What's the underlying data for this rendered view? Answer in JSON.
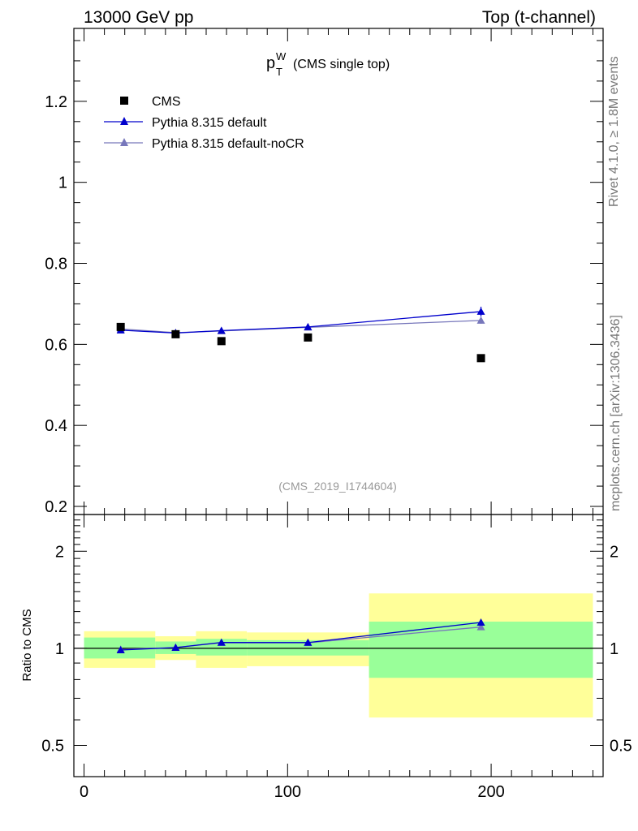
{
  "header": {
    "left": "13000 GeV pp",
    "right": "Top (t-channel)"
  },
  "title": {
    "main": "p",
    "sup": "W",
    "sub": "T",
    "suffix": "(CMS single top)"
  },
  "side_text": {
    "rivet": "Rivet 4.1.0, ≥ 1.8M events",
    "mcplots": "mcplots.cern.ch [arXiv:1306.3436]"
  },
  "analysis_label": "(CMS_2019_I1744604)",
  "colors": {
    "data": "#000000",
    "pythia_default": "#0000cc",
    "pythia_nocr": "#7777bb",
    "band_inner": "#99ff99",
    "band_outer": "#ffff99"
  },
  "chart_data": [
    {
      "type": "scatter",
      "panel": "main",
      "ylim": [
        0.18,
        1.38
      ],
      "xlim": [
        -5,
        255
      ],
      "yticks": [
        0.2,
        0.4,
        0.6,
        0.8,
        1,
        1.2
      ],
      "ytick_labels": [
        "0.2",
        "0.4",
        "0.6",
        "0.8",
        "1",
        "1.2"
      ],
      "legend_position": "top-left",
      "series": [
        {
          "name": "CMS",
          "marker": "square",
          "x": [
            18,
            45,
            67.5,
            110,
            195
          ],
          "y": [
            0.643,
            0.625,
            0.608,
            0.617,
            0.566
          ]
        },
        {
          "name": "Pythia 8.315 default",
          "marker": "triangle",
          "x": [
            18,
            45,
            67.5,
            110,
            195
          ],
          "y": [
            0.635,
            0.628,
            0.634,
            0.643,
            0.681
          ],
          "yerr": [
            0.004,
            0.004,
            0.004,
            0.005,
            0.012
          ]
        },
        {
          "name": "Pythia 8.315 default-noCR",
          "marker": "triangle",
          "x": [
            18,
            45,
            67.5,
            110,
            195
          ],
          "y": [
            0.638,
            0.629,
            0.633,
            0.642,
            0.659
          ],
          "yerr": [
            0.004,
            0.004,
            0.004,
            0.005,
            0.008
          ]
        }
      ]
    },
    {
      "type": "line",
      "panel": "ratio",
      "ylabel": "Ratio to CMS",
      "yscale": "log",
      "ylim": [
        0.4,
        2.6
      ],
      "xlim": [
        -5,
        255
      ],
      "yticks": [
        0.5,
        1,
        2
      ],
      "ytick_labels": [
        "0.5",
        "1",
        "2"
      ],
      "xticks": [
        0,
        100,
        200
      ],
      "xtick_labels": [
        "0",
        "100",
        "200"
      ],
      "reference": 1,
      "bins": [
        {
          "x_low": 0,
          "x_high": 35,
          "inner": [
            0.93,
            1.08
          ],
          "outer": [
            0.87,
            1.13
          ]
        },
        {
          "x_low": 35,
          "x_high": 55,
          "inner": [
            0.96,
            1.05
          ],
          "outer": [
            0.92,
            1.09
          ]
        },
        {
          "x_low": 55,
          "x_high": 80,
          "inner": [
            0.95,
            1.07
          ],
          "outer": [
            0.87,
            1.13
          ]
        },
        {
          "x_low": 80,
          "x_high": 140,
          "inner": [
            0.95,
            1.06
          ],
          "outer": [
            0.88,
            1.12
          ]
        },
        {
          "x_low": 140,
          "x_high": 250,
          "inner": [
            0.81,
            1.21
          ],
          "outer": [
            0.61,
            1.48
          ]
        }
      ],
      "series": [
        {
          "name": "Pythia 8.315 default",
          "x": [
            18,
            45,
            67.5,
            110,
            195
          ],
          "y": [
            0.988,
            1.005,
            1.043,
            1.042,
            1.203
          ]
        },
        {
          "name": "Pythia 8.315 default-noCR",
          "x": [
            18,
            45,
            67.5,
            110,
            195
          ],
          "y": [
            0.992,
            1.006,
            1.041,
            1.04,
            1.164
          ]
        }
      ]
    }
  ]
}
